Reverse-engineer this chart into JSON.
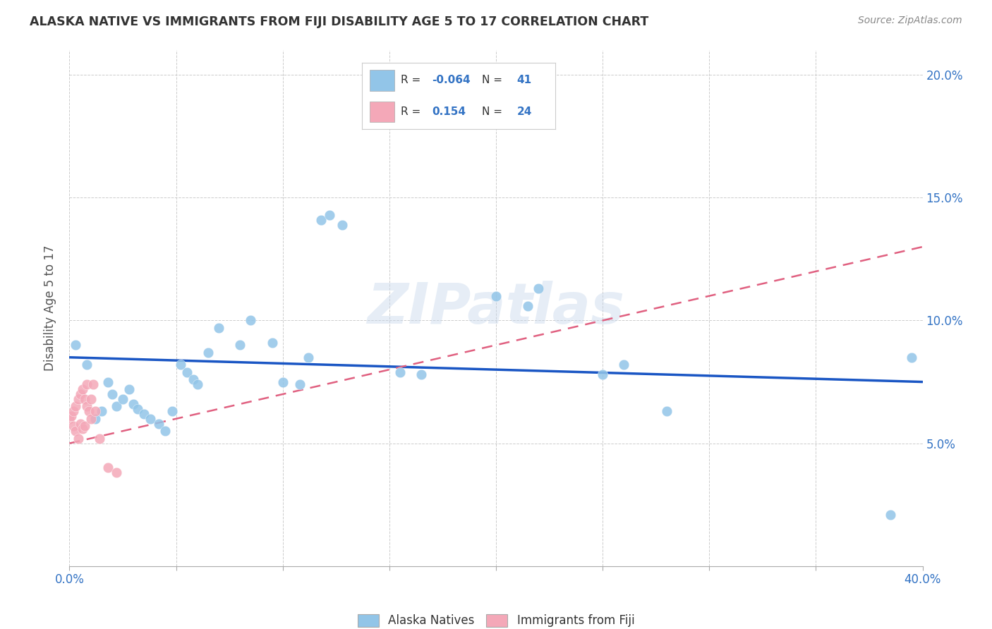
{
  "title": "ALASKA NATIVE VS IMMIGRANTS FROM FIJI DISABILITY AGE 5 TO 17 CORRELATION CHART",
  "source": "Source: ZipAtlas.com",
  "ylabel": "Disability Age 5 to 17",
  "xlim": [
    0.0,
    0.4
  ],
  "ylim": [
    0.0,
    0.21
  ],
  "xticks": [
    0.0,
    0.05,
    0.1,
    0.15,
    0.2,
    0.25,
    0.3,
    0.35,
    0.4
  ],
  "yticks": [
    0.0,
    0.05,
    0.1,
    0.15,
    0.2
  ],
  "alaska_R": -0.064,
  "alaska_N": 41,
  "fiji_R": 0.154,
  "fiji_N": 24,
  "alaska_color": "#92C5E8",
  "fiji_color": "#F4A8B8",
  "alaska_trend_color": "#1A56C4",
  "fiji_trend_color": "#E06080",
  "watermark": "ZIPatlas",
  "alaska_x": [
    0.003,
    0.008,
    0.012,
    0.015,
    0.018,
    0.02,
    0.022,
    0.025,
    0.028,
    0.03,
    0.032,
    0.035,
    0.038,
    0.042,
    0.045,
    0.048,
    0.052,
    0.055,
    0.058,
    0.06,
    0.065,
    0.07,
    0.08,
    0.085,
    0.095,
    0.1,
    0.108,
    0.112,
    0.118,
    0.122,
    0.128,
    0.155,
    0.165,
    0.2,
    0.215,
    0.22,
    0.25,
    0.26,
    0.28,
    0.385,
    0.395
  ],
  "alaska_y": [
    0.09,
    0.082,
    0.06,
    0.063,
    0.075,
    0.07,
    0.065,
    0.068,
    0.072,
    0.066,
    0.064,
    0.062,
    0.06,
    0.058,
    0.055,
    0.063,
    0.082,
    0.079,
    0.076,
    0.074,
    0.087,
    0.097,
    0.09,
    0.1,
    0.091,
    0.075,
    0.074,
    0.085,
    0.141,
    0.143,
    0.139,
    0.079,
    0.078,
    0.11,
    0.106,
    0.113,
    0.078,
    0.082,
    0.063,
    0.021,
    0.085
  ],
  "fiji_x": [
    0.0,
    0.001,
    0.002,
    0.002,
    0.003,
    0.003,
    0.004,
    0.004,
    0.005,
    0.005,
    0.006,
    0.006,
    0.007,
    0.007,
    0.008,
    0.008,
    0.009,
    0.01,
    0.01,
    0.011,
    0.012,
    0.014,
    0.018,
    0.022
  ],
  "fiji_y": [
    0.06,
    0.061,
    0.057,
    0.063,
    0.055,
    0.065,
    0.052,
    0.068,
    0.058,
    0.07,
    0.056,
    0.072,
    0.057,
    0.068,
    0.065,
    0.074,
    0.063,
    0.06,
    0.068,
    0.074,
    0.063,
    0.052,
    0.04,
    0.038
  ],
  "alaska_trend_x0": 0.0,
  "alaska_trend_y0": 0.085,
  "alaska_trend_x1": 0.4,
  "alaska_trend_y1": 0.075,
  "fiji_trend_x0": 0.0,
  "fiji_trend_y0": 0.05,
  "fiji_trend_x1": 0.4,
  "fiji_trend_y1": 0.13
}
